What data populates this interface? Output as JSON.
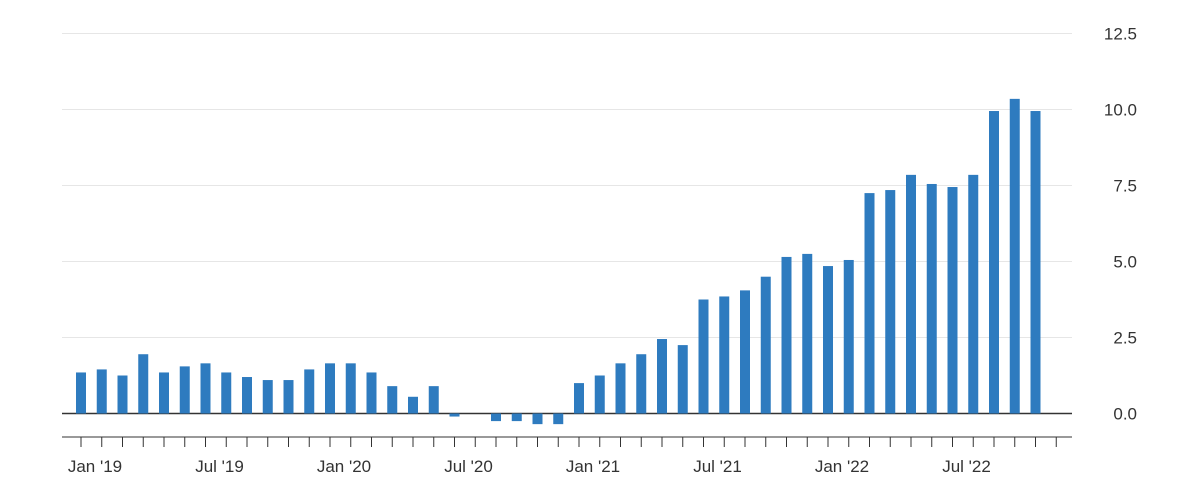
{
  "chart_data": {
    "type": "bar",
    "x": [
      "2019-01",
      "2019-02",
      "2019-03",
      "2019-04",
      "2019-05",
      "2019-06",
      "2019-07",
      "2019-08",
      "2019-09",
      "2019-10",
      "2019-11",
      "2019-12",
      "2020-01",
      "2020-02",
      "2020-03",
      "2020-04",
      "2020-05",
      "2020-06",
      "2020-07",
      "2020-08",
      "2020-09",
      "2020-10",
      "2020-11",
      "2020-12",
      "2021-01",
      "2021-02",
      "2021-03",
      "2021-04",
      "2021-05",
      "2021-06",
      "2021-07",
      "2021-08",
      "2021-09",
      "2021-10",
      "2021-11",
      "2021-12",
      "2022-01",
      "2022-02",
      "2022-03",
      "2022-04",
      "2022-05",
      "2022-06",
      "2022-07",
      "2022-08",
      "2022-09",
      "2022-10",
      "2022-11"
    ],
    "values": [
      1.35,
      1.45,
      1.25,
      1.95,
      1.35,
      1.55,
      1.65,
      1.35,
      1.2,
      1.1,
      1.1,
      1.45,
      1.65,
      1.65,
      1.35,
      0.9,
      0.55,
      0.9,
      -0.1,
      0,
      -0.25,
      -0.25,
      -0.35,
      -0.35,
      1.0,
      1.25,
      1.65,
      1.95,
      2.45,
      2.25,
      3.75,
      3.85,
      4.05,
      4.5,
      5.15,
      5.25,
      4.85,
      5.05,
      7.25,
      7.35,
      7.85,
      7.55,
      7.45,
      7.85,
      9.95,
      10.35,
      9.95
    ],
    "xtick_labels": [
      "Jan '19",
      "Jul '19",
      "Jan '20",
      "Jul '20",
      "Jan '21",
      "Jul '21",
      "Jan '22",
      "Jul '22"
    ],
    "yticks": [
      "0.0",
      "2.5",
      "5.0",
      "7.5",
      "10.0",
      "12.5"
    ],
    "ylim": [
      -0.75,
      12.5
    ],
    "grid": true,
    "y_axis_side": "right",
    "bar_color": "#2e7bbf",
    "grid_color": "#e6e6e6",
    "zero_line_color": "#333333"
  }
}
